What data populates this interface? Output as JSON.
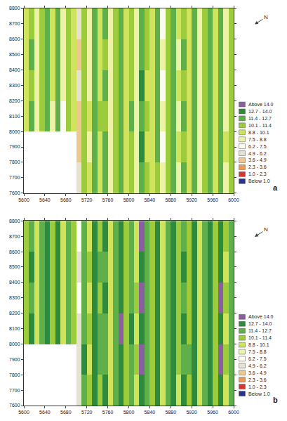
{
  "chart_data": [
    {
      "type": "heatmap",
      "panel_label": "a",
      "north_label": "N",
      "x": [
        5605,
        5615,
        5625,
        5635,
        5645,
        5655,
        5665,
        5675,
        5685,
        5695,
        5705,
        5715,
        5725,
        5735,
        5745,
        5755,
        5765,
        5775,
        5785,
        5795,
        5805,
        5815,
        5825,
        5835,
        5845,
        5855,
        5865,
        5875,
        5885,
        5895,
        5905,
        5915,
        5925,
        5935,
        5945,
        5955,
        5965,
        5975,
        5985,
        5995
      ],
      "y": [
        7700,
        7900,
        8100,
        8300,
        8500,
        8700
      ],
      "cells": [
        [
          null,
          null,
          null,
          null,
          null,
          null,
          null,
          null,
          null,
          null,
          5.2,
          10.8,
          8.9,
          12.0,
          9.5,
          11.8,
          8.3,
          10.5,
          12.1,
          9.7,
          10.7,
          8.0,
          12.4,
          10.5,
          9.3,
          11.2,
          7.9,
          10.6,
          12.3,
          8.5,
          11.6,
          9.2,
          12.0,
          8.4,
          10.3,
          11.6,
          9.7,
          12.2,
          8.2,
          10.9
        ],
        [
          null,
          null,
          null,
          null,
          null,
          null,
          null,
          null,
          null,
          null,
          4.8,
          11.3,
          8.4,
          12.3,
          9.9,
          11.4,
          7.7,
          11.0,
          12.5,
          9.1,
          11.2,
          8.7,
          12.8,
          10.0,
          8.8,
          11.8,
          7.4,
          11.2,
          11.8,
          9.1,
          11.0,
          9.9,
          12.5,
          7.9,
          10.9,
          12.1,
          9.0,
          12.7,
          8.8,
          10.2
        ],
        [
          9.2,
          11.5,
          8.0,
          10.3,
          12.2,
          8.7,
          11.5,
          7.5,
          10.8,
          9.6,
          4.0,
          10.7,
          8.8,
          11.9,
          10.1,
          11.2,
          8.4,
          10.4,
          12.6,
          9.0,
          11.4,
          8.2,
          12.3,
          10.6,
          9.4,
          11.4,
          7.8,
          10.5,
          12.4,
          8.6,
          11.5,
          9.4,
          12.1,
          8.3,
          10.4,
          11.7,
          9.5,
          12.3,
          8.3,
          10.7
        ],
        [
          9.8,
          10.9,
          8.5,
          10.8,
          11.7,
          9.3,
          12.0,
          8.1,
          10.1,
          8.9,
          6.0,
          11.2,
          8.3,
          12.5,
          9.5,
          11.7,
          7.8,
          11.1,
          12.2,
          9.6,
          10.8,
          8.6,
          12.8,
          9.9,
          8.8,
          11.9,
          7.3,
          11.2,
          11.9,
          9.0,
          11.1,
          9.8,
          12.5,
          7.9,
          11.0,
          12.2,
          9.1,
          12.7,
          8.7,
          10.3
        ],
        [
          9.4,
          11.4,
          8.1,
          10.5,
          12.3,
          8.8,
          11.6,
          7.6,
          10.6,
          9.5,
          4.5,
          10.9,
          8.7,
          12.0,
          9.9,
          11.3,
          8.2,
          10.6,
          12.5,
          9.2,
          11.1,
          8.3,
          12.4,
          10.4,
          9.1,
          11.5,
          7.7,
          10.8,
          12.2,
          8.7,
          11.4,
          9.5,
          12.2,
          8.2,
          10.6,
          11.8,
          9.4,
          12.4,
          8.4,
          10.6
        ],
        [
          9.6,
          11.0,
          8.4,
          10.7,
          11.9,
          9.1,
          11.9,
          8.0,
          10.3,
          9.0,
          5.8,
          11.1,
          8.5,
          12.3,
          9.7,
          11.6,
          7.9,
          10.9,
          12.3,
          9.5,
          10.9,
          8.5,
          12.7,
          10.1,
          8.9,
          11.7,
          7.5,
          11.0,
          12.0,
          8.9,
          11.2,
          9.7,
          12.4,
          8.0,
          10.8,
          12.0,
          9.2,
          12.6,
          8.6,
          10.4
        ]
      ],
      "xlim": [
        5600,
        6000
      ],
      "ylim": [
        7600,
        8800
      ],
      "xticks": [
        5600,
        5640,
        5680,
        5720,
        5760,
        5800,
        5840,
        5880,
        5920,
        5960,
        6000
      ],
      "yticks": [
        7600,
        7700,
        7800,
        7900,
        8000,
        8100,
        8200,
        8300,
        8400,
        8500,
        8600,
        8700,
        8800
      ],
      "color_range": [
        -0.3,
        15.3
      ],
      "color_classes": {
        "labels": [
          "Above 14.0",
          "12.7 - 14.0",
          "11.4 - 12.7",
          "10.1 - 11.4",
          "8.8 - 10.1",
          "7.5 - 8.8",
          "6.2 - 7.5",
          "4.9 - 6.2",
          "3.6 - 4.9",
          "2.3 - 3.6",
          "1.0 - 2.3",
          "Below 1.0"
        ],
        "colors": [
          "#8a5fa0",
          "#2e8b3e",
          "#5fb04a",
          "#9ccc3c",
          "#cfe35c",
          "#eef2a6",
          "#fbfbf0",
          "#e7e2cf",
          "#ecc98e",
          "#eb9a55",
          "#d5352f",
          "#26348c"
        ]
      }
    },
    {
      "type": "heatmap",
      "panel_label": "b",
      "north_label": "N",
      "x": [
        5605,
        5615,
        5625,
        5635,
        5645,
        5655,
        5665,
        5675,
        5685,
        5695,
        5705,
        5715,
        5725,
        5735,
        5745,
        5755,
        5765,
        5775,
        5785,
        5795,
        5805,
        5815,
        5825,
        5835,
        5845,
        5855,
        5865,
        5875,
        5885,
        5895,
        5905,
        5915,
        5925,
        5935,
        5945,
        5955,
        5965,
        5975,
        5985,
        5995
      ],
      "y": [
        7700,
        7900,
        8100,
        8300,
        8500,
        8700
      ],
      "cells": [
        [
          null,
          null,
          null,
          null,
          null,
          null,
          null,
          null,
          null,
          null,
          6.0,
          12.4,
          10.1,
          13.4,
          11.0,
          13.1,
          9.8,
          12.0,
          13.5,
          11.2,
          12.3,
          9.6,
          13.8,
          12.0,
          10.7,
          12.9,
          9.3,
          12.1,
          13.6,
          10.0,
          13.0,
          10.8,
          13.4,
          9.9,
          11.8,
          13.0,
          11.3,
          13.6,
          9.7,
          12.4
        ],
        [
          null,
          null,
          null,
          null,
          null,
          null,
          null,
          null,
          null,
          null,
          5.6,
          12.8,
          9.8,
          13.7,
          11.4,
          12.7,
          9.2,
          12.5,
          13.9,
          10.6,
          12.7,
          10.2,
          14.2,
          11.5,
          10.3,
          13.3,
          8.9,
          12.6,
          13.2,
          10.6,
          12.5,
          11.4,
          13.9,
          9.4,
          12.3,
          13.5,
          10.5,
          14.1,
          10.3,
          11.7
        ],
        [
          10.8,
          13.0,
          9.6,
          11.9,
          13.6,
          10.2,
          13.0,
          9.1,
          12.3,
          11.1,
          4.9,
          12.2,
          10.3,
          13.3,
          11.5,
          12.6,
          9.9,
          11.9,
          14.0,
          10.5,
          12.9,
          9.8,
          13.7,
          12.1,
          10.9,
          12.8,
          9.4,
          12.0,
          13.8,
          10.1,
          13.0,
          10.9,
          13.5,
          9.8,
          11.9,
          13.1,
          11.0,
          13.7,
          9.8,
          12.2
        ],
        [
          11.3,
          12.4,
          10.0,
          12.3,
          13.1,
          10.8,
          13.4,
          9.6,
          11.6,
          10.4,
          6.8,
          12.6,
          9.8,
          13.9,
          11.0,
          13.1,
          9.3,
          12.6,
          13.6,
          11.1,
          12.3,
          10.1,
          14.3,
          11.4,
          10.3,
          13.3,
          8.8,
          12.7,
          13.3,
          10.5,
          12.6,
          11.3,
          13.9,
          9.4,
          12.5,
          13.6,
          10.6,
          14.1,
          10.2,
          11.8
        ],
        [
          10.9,
          12.9,
          9.7,
          12.0,
          13.7,
          10.3,
          13.1,
          9.2,
          12.1,
          11.0,
          5.3,
          12.4,
          10.2,
          13.4,
          11.4,
          12.7,
          9.7,
          12.1,
          13.9,
          10.7,
          12.6,
          9.9,
          13.8,
          11.9,
          10.6,
          12.9,
          9.2,
          12.3,
          13.6,
          10.2,
          12.9,
          11.0,
          13.6,
          9.7,
          12.1,
          13.2,
          10.9,
          13.8,
          9.9,
          12.1
        ],
        [
          11.1,
          12.5,
          9.9,
          12.2,
          13.3,
          10.6,
          13.3,
          9.5,
          11.8,
          10.5,
          6.5,
          12.5,
          10.0,
          13.7,
          11.2,
          13.0,
          9.4,
          12.4,
          13.7,
          11.0,
          12.4,
          10.0,
          14.1,
          11.6,
          10.4,
          13.1,
          9.0,
          12.5,
          13.4,
          10.4,
          12.7,
          11.2,
          13.8,
          9.5,
          12.3,
          13.4,
          10.7,
          13.9,
          10.1,
          11.9
        ]
      ],
      "xlim": [
        5600,
        6000
      ],
      "ylim": [
        7600,
        8800
      ],
      "xticks": [
        5600,
        5640,
        5680,
        5720,
        5760,
        5800,
        5840,
        5880,
        5920,
        5960,
        6000
      ],
      "yticks": [
        7600,
        7700,
        7800,
        7900,
        8000,
        8100,
        8200,
        8300,
        8400,
        8500,
        8600,
        8700,
        8800
      ],
      "color_range": [
        -0.3,
        15.3
      ],
      "color_classes": {
        "labels": [
          "Above 14.0",
          "12.7 - 14.0",
          "11.4 - 12.7",
          "10.1 - 11.4",
          "8.8 - 10.1",
          "7.5 - 8.8",
          "6.2 - 7.5",
          "4.9 - 6.2",
          "3.6 - 4.9",
          "2.3 - 3.6",
          "1.0 - 2.3",
          "Below 1.0"
        ],
        "colors": [
          "#8a5fa0",
          "#2e8b3e",
          "#5fb04a",
          "#9ccc3c",
          "#cfe35c",
          "#eef2a6",
          "#fbfbf0",
          "#e7e2cf",
          "#ecc98e",
          "#eb9a55",
          "#d5352f",
          "#26348c"
        ]
      }
    }
  ]
}
